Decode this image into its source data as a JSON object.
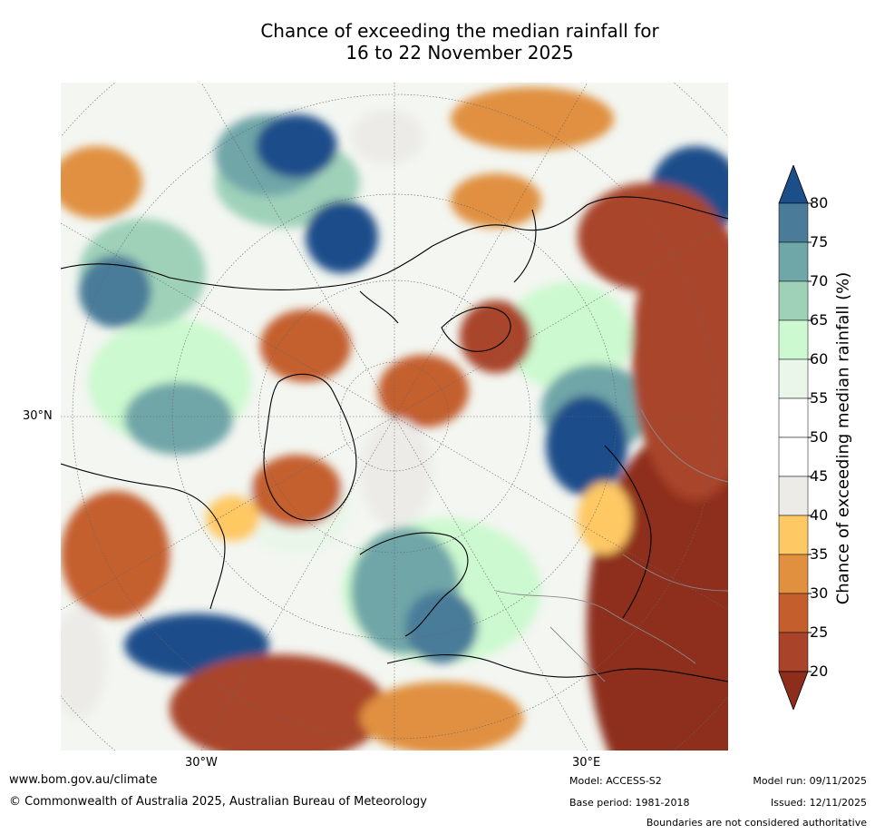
{
  "title": {
    "line1": "Chance of exceeding the median rainfall for",
    "line2": "16 to 22 November 2025"
  },
  "map": {
    "projection": "north-polar-stereographic",
    "lat_label": "30°N",
    "lon_labels": [
      "30°W",
      "30°E"
    ]
  },
  "colorbar": {
    "title": "Chance of exceeding median rainfall (%)",
    "ticks": [
      "80",
      "75",
      "70",
      "65",
      "60",
      "55",
      "50",
      "45",
      "40",
      "35",
      "30",
      "25",
      "20"
    ],
    "colors": [
      "#1c4e8a",
      "#4a7c99",
      "#6fa6a8",
      "#9fd1b9",
      "#ccf9cf",
      "#eaf6ea",
      "#ffffff",
      "#ffffff",
      "#ecebe8",
      "#fec864",
      "#e0903f",
      "#c45f2d",
      "#a9442a",
      "#8e2d1c"
    ]
  },
  "footer": {
    "website": "www.bom.gov.au/climate",
    "copyright": "© Commonwealth of Australia 2025, Australian Bureau of Meteorology",
    "model": "Model: ACCESS-S2",
    "base_period": "Base period: 1981-2018",
    "model_run": "Model run: 09/11/2025",
    "issued": "Issued: 12/11/2025",
    "disclaimer": "Boundaries are not considered authoritative"
  }
}
